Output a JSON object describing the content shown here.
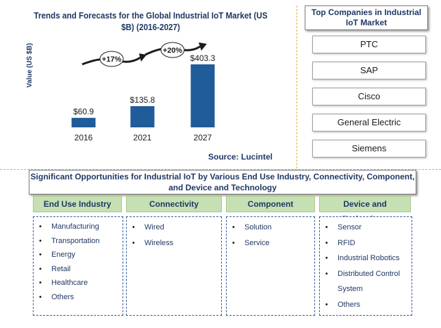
{
  "chart_data": {
    "type": "bar",
    "title": "Trends and Forecasts for the Global Industrial IoT Market (US $B) (2016-2027)",
    "ylabel": "Value (US $B)",
    "xlabel": "",
    "categories": [
      "2016",
      "2021",
      "2027"
    ],
    "values": [
      60.9,
      135.8,
      403.3
    ],
    "data_labels": [
      "$60.9",
      "$135.8",
      "$403.3"
    ],
    "growth_annotations": [
      "+17%",
      "+20%"
    ],
    "bar_color": "#1f5c99",
    "arrow_color": "#1a1a1a"
  },
  "source": "Source: Lucintel",
  "top_companies": {
    "title": "Top Companies in Industrial IoT Market",
    "items": [
      "PTC",
      "SAP",
      "Cisco",
      "General Electric",
      "Siemens"
    ]
  },
  "opportunities": {
    "title": "Significant Opportunities for Industrial IoT by Various End Use Industry, Connectivity, Component, and Device and Technology",
    "columns": [
      {
        "header": "End Use Industry",
        "items": [
          "Manufacturing",
          "Transportation",
          "Energy",
          "Retail",
          "Healthcare",
          "Others"
        ]
      },
      {
        "header": "Connectivity",
        "items": [
          "Wired",
          "Wireless"
        ]
      },
      {
        "header": "Component",
        "items": [
          "Solution",
          "Service"
        ]
      },
      {
        "header": "Device and Technology",
        "items": [
          "Sensor",
          "RFID",
          "Industrial Robotics",
          "Distributed Control System",
          "Others"
        ]
      }
    ],
    "header_color": "#c6e0b4",
    "text_color": "#1f3864"
  }
}
